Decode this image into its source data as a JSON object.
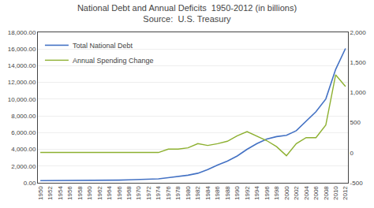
{
  "chart_data": {
    "type": "line",
    "title": "National Debt and Annual Deficits  1950-2012 (in billions)",
    "subtitle": "Source:  U.S. Treasury",
    "x": [
      1950,
      1952,
      1954,
      1956,
      1958,
      1960,
      1962,
      1964,
      1966,
      1968,
      1970,
      1972,
      1974,
      1976,
      1978,
      1980,
      1982,
      1984,
      1986,
      1988,
      1990,
      1992,
      1994,
      1996,
      1998,
      2000,
      2002,
      2004,
      2006,
      2008,
      2010,
      2012
    ],
    "series": [
      {
        "name": "Total National Debt",
        "color": "#4472C4",
        "values": [
          257,
          259,
          271,
          272,
          279,
          286,
          298,
          311,
          320,
          347,
          371,
          427,
          475,
          620,
          772,
          908,
          1142,
          1572,
          2120,
          2601,
          3206,
          4002,
          4693,
          5225,
          5526,
          5674,
          6228,
          7379,
          8507,
          10025,
          13562,
          16066
        ]
      },
      {
        "name": "Annual Spending Change",
        "color": "#8DB030",
        "axis": "y2",
        "values": [
          3,
          3,
          3,
          2,
          3,
          2,
          3,
          3,
          3,
          3,
          3,
          3,
          3,
          60,
          60,
          80,
          150,
          120,
          150,
          190,
          280,
          350,
          280,
          200,
          100,
          -50,
          150,
          250,
          250,
          460,
          1294,
          1100
        ]
      }
    ],
    "xlim": [
      1949.5,
      2012.5
    ],
    "xticks": [
      1950,
      1952,
      1954,
      1956,
      1958,
      1960,
      1962,
      1964,
      1966,
      1968,
      1970,
      1972,
      1974,
      1976,
      1978,
      1980,
      1982,
      1984,
      1986,
      1988,
      1990,
      1992,
      1994,
      1996,
      1998,
      2000,
      2002,
      2004,
      2006,
      2008,
      2010,
      2012
    ],
    "ylim": [
      0,
      18000
    ],
    "yticks": [
      {
        "value": 0,
        "label": "0.00"
      },
      {
        "value": 2000,
        "label": "2,000.00"
      },
      {
        "value": 4000,
        "label": "4,000.00"
      },
      {
        "value": 6000,
        "label": "6,000.00"
      },
      {
        "value": 8000,
        "label": "8,000.00"
      },
      {
        "value": 10000,
        "label": "10,000.00"
      },
      {
        "value": 12000,
        "label": "12,000.00"
      },
      {
        "value": 14000,
        "label": "14,000.00"
      },
      {
        "value": 16000,
        "label": "16,000.00"
      },
      {
        "value": 18000,
        "label": "18,000.00"
      }
    ],
    "y2lim": [
      -500,
      2000
    ],
    "y2ticks": [
      -500,
      0,
      500,
      {
        "value": 1000,
        "label": "1,000"
      },
      {
        "value": 1500,
        "label": "1,500"
      },
      {
        "value": 2000,
        "label": "2,000"
      }
    ],
    "grid": true,
    "legend": "upper left"
  }
}
